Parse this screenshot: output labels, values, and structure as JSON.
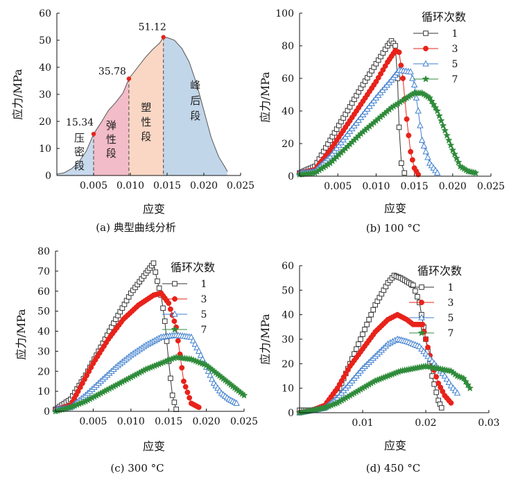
{
  "chart_data": [
    {
      "id": "a",
      "type": "area",
      "caption": "(a) 典型曲线分析",
      "xlabel": "应变",
      "ylabel": "应力/MPa",
      "xlim": [
        0,
        0.025
      ],
      "ylim": [
        0,
        60
      ],
      "xticks": [
        "0.005",
        "0.010",
        "0.015",
        "0.020",
        "0.025"
      ],
      "xtick_values": [
        0.005,
        0.01,
        0.015,
        0.02,
        0.025
      ],
      "yticks": [
        "0",
        "10",
        "20",
        "30",
        "40",
        "50",
        "60"
      ],
      "ytick_values": [
        0,
        10,
        20,
        30,
        40,
        50,
        60
      ],
      "curve": [
        [
          0.0,
          0.5
        ],
        [
          0.001,
          1.0
        ],
        [
          0.002,
          2.5
        ],
        [
          0.003,
          5.0
        ],
        [
          0.004,
          9.0
        ],
        [
          0.005,
          15.34
        ],
        [
          0.006,
          19.5
        ],
        [
          0.007,
          24.0
        ],
        [
          0.008,
          27.0
        ],
        [
          0.009,
          30.5
        ],
        [
          0.0098,
          35.78
        ],
        [
          0.011,
          40.0
        ],
        [
          0.012,
          43.5
        ],
        [
          0.013,
          46.5
        ],
        [
          0.014,
          49.0
        ],
        [
          0.0145,
          51.12
        ],
        [
          0.015,
          51.0
        ],
        [
          0.016,
          50.0
        ],
        [
          0.017,
          47.0
        ],
        [
          0.018,
          42.0
        ],
        [
          0.019,
          34.0
        ],
        [
          0.02,
          24.0
        ],
        [
          0.021,
          14.0
        ],
        [
          0.022,
          7.0
        ],
        [
          0.023,
          2.5
        ],
        [
          0.0232,
          1.5
        ]
      ],
      "regions": [
        {
          "label": "压密段",
          "from": 0.0,
          "to": 0.005,
          "color": "#c7d9ec"
        },
        {
          "label": "弹性段",
          "from": 0.005,
          "to": 0.0098,
          "color": "#f2bcc8"
        },
        {
          "label": "塑性段",
          "from": 0.0098,
          "to": 0.0145,
          "color": "#fad7c4"
        },
        {
          "label": "峰后段",
          "from": 0.0145,
          "to": 0.0232,
          "color": "#c2d6ea"
        }
      ],
      "points": [
        {
          "x": 0.005,
          "y": 15.34,
          "label": "15.34"
        },
        {
          "x": 0.0098,
          "y": 35.78,
          "label": "35.78"
        },
        {
          "x": 0.0145,
          "y": 51.12,
          "label": "51.12"
        }
      ],
      "grid": false
    },
    {
      "id": "b",
      "type": "scatter",
      "caption": "(b) 100 °C",
      "xlabel": "应变",
      "ylabel": "应力/MPa",
      "xlim": [
        0,
        0.025
      ],
      "ylim": [
        0,
        100
      ],
      "xticks": [
        "0.005",
        "0.010",
        "0.015",
        "0.020",
        "0.025"
      ],
      "xtick_values": [
        0.005,
        0.01,
        0.015,
        0.02,
        0.025
      ],
      "yticks": [
        "0",
        "20",
        "40",
        "60",
        "80",
        "100"
      ],
      "ytick_values": [
        0,
        20,
        40,
        60,
        80,
        100
      ],
      "legend_title": "循环次数",
      "legend_position": "top-right",
      "series": [
        {
          "name": "1",
          "color": "#333333",
          "marker": "square",
          "points": [
            [
              0.0,
              2
            ],
            [
              0.002,
              6
            ],
            [
              0.004,
              22
            ],
            [
              0.006,
              38
            ],
            [
              0.008,
              54
            ],
            [
              0.01,
              69
            ],
            [
              0.0115,
              80
            ],
            [
              0.012,
              83
            ],
            [
              0.0125,
              80
            ],
            [
              0.0128,
              60
            ],
            [
              0.013,
              30
            ],
            [
              0.0133,
              8
            ],
            [
              0.0137,
              2
            ]
          ]
        },
        {
          "name": "3",
          "color": "#e8221a",
          "marker": "circle",
          "points": [
            [
              0.0,
              2
            ],
            [
              0.002,
              4
            ],
            [
              0.004,
              16
            ],
            [
              0.006,
              30
            ],
            [
              0.008,
              44
            ],
            [
              0.01,
              58
            ],
            [
              0.0115,
              70
            ],
            [
              0.0125,
              77
            ],
            [
              0.013,
              76
            ],
            [
              0.0135,
              60
            ],
            [
              0.014,
              35
            ],
            [
              0.0145,
              15
            ],
            [
              0.015,
              5
            ],
            [
              0.0155,
              1
            ]
          ]
        },
        {
          "name": "5",
          "color": "#3f7fcf",
          "marker": "triangle",
          "points": [
            [
              0.0,
              2
            ],
            [
              0.002,
              3
            ],
            [
              0.004,
              12
            ],
            [
              0.006,
              24
            ],
            [
              0.008,
              36
            ],
            [
              0.01,
              48
            ],
            [
              0.012,
              59
            ],
            [
              0.013,
              65
            ],
            [
              0.0145,
              64
            ],
            [
              0.015,
              56
            ],
            [
              0.0155,
              40
            ],
            [
              0.016,
              22
            ],
            [
              0.017,
              8
            ],
            [
              0.018,
              2
            ]
          ]
        },
        {
          "name": "7",
          "color": "#2e8b3a",
          "marker": "star",
          "points": [
            [
              0.0,
              1
            ],
            [
              0.002,
              2
            ],
            [
              0.004,
              8
            ],
            [
              0.006,
              17
            ],
            [
              0.008,
              26
            ],
            [
              0.01,
              34
            ],
            [
              0.012,
              42
            ],
            [
              0.014,
              48
            ],
            [
              0.015,
              51
            ],
            [
              0.016,
              51
            ],
            [
              0.017,
              48
            ],
            [
              0.018,
              40
            ],
            [
              0.019,
              28
            ],
            [
              0.02,
              16
            ],
            [
              0.021,
              6
            ],
            [
              0.022,
              3
            ],
            [
              0.023,
              2
            ]
          ]
        }
      ],
      "grid": false
    },
    {
      "id": "c",
      "type": "scatter",
      "caption": "(c) 300 °C",
      "xlabel": "应变",
      "ylabel": "应力/MPa",
      "xlim": [
        0,
        0.025
      ],
      "ylim": [
        0,
        80
      ],
      "xticks": [
        "0.005",
        "0.010",
        "0.015",
        "0.020",
        "0.025"
      ],
      "xtick_values": [
        0.005,
        0.01,
        0.015,
        0.02,
        0.025
      ],
      "yticks": [
        "0",
        "10",
        "20",
        "30",
        "40",
        "50",
        "60",
        "70",
        "80"
      ],
      "ytick_values": [
        0,
        10,
        20,
        30,
        40,
        50,
        60,
        70,
        80
      ],
      "legend_title": "循环次数",
      "legend_position": "top-right",
      "series": [
        {
          "name": "1",
          "color": "#333333",
          "marker": "square",
          "points": [
            [
              0.0,
              1
            ],
            [
              0.002,
              6
            ],
            [
              0.004,
              18
            ],
            [
              0.006,
              32
            ],
            [
              0.008,
              46
            ],
            [
              0.01,
              59
            ],
            [
              0.012,
              69
            ],
            [
              0.013,
              74
            ],
            [
              0.0135,
              65
            ],
            [
              0.014,
              58
            ],
            [
              0.0145,
              45
            ],
            [
              0.015,
              25
            ],
            [
              0.0155,
              8
            ],
            [
              0.016,
              1
            ]
          ]
        },
        {
          "name": "3",
          "color": "#e8221a",
          "marker": "circle",
          "points": [
            [
              0.0,
              1
            ],
            [
              0.002,
              3
            ],
            [
              0.003,
              10
            ],
            [
              0.005,
              24
            ],
            [
              0.007,
              36
            ],
            [
              0.009,
              46
            ],
            [
              0.011,
              53
            ],
            [
              0.013,
              58
            ],
            [
              0.014,
              59
            ],
            [
              0.015,
              54
            ],
            [
              0.016,
              42
            ],
            [
              0.017,
              15
            ],
            [
              0.018,
              4
            ],
            [
              0.019,
              2
            ]
          ]
        },
        {
          "name": "5",
          "color": "#3f7fcf",
          "marker": "triangle",
          "points": [
            [
              0.0,
              1
            ],
            [
              0.002,
              2
            ],
            [
              0.004,
              8
            ],
            [
              0.006,
              15
            ],
            [
              0.008,
              22
            ],
            [
              0.01,
              28
            ],
            [
              0.012,
              33
            ],
            [
              0.014,
              37
            ],
            [
              0.016,
              38
            ],
            [
              0.018,
              37
            ],
            [
              0.019,
              30
            ],
            [
              0.02,
              22
            ],
            [
              0.021,
              14
            ],
            [
              0.022,
              9
            ],
            [
              0.023,
              6
            ],
            [
              0.024,
              4
            ]
          ]
        },
        {
          "name": "7",
          "color": "#2e8b3a",
          "marker": "star",
          "points": [
            [
              0.0,
              0
            ],
            [
              0.002,
              2
            ],
            [
              0.004,
              5
            ],
            [
              0.006,
              9
            ],
            [
              0.008,
              13
            ],
            [
              0.01,
              17
            ],
            [
              0.012,
              21
            ],
            [
              0.014,
              24
            ],
            [
              0.016,
              27
            ],
            [
              0.018,
              26
            ],
            [
              0.02,
              23
            ],
            [
              0.021,
              20
            ],
            [
              0.022,
              17
            ],
            [
              0.023,
              14
            ],
            [
              0.024,
              11
            ],
            [
              0.025,
              8
            ]
          ]
        }
      ],
      "grid": false
    },
    {
      "id": "d",
      "type": "scatter",
      "caption": "(d) 450 °C",
      "xlabel": "应变",
      "ylabel": "应力/MPa",
      "xlim": [
        0,
        0.03
      ],
      "ylim": [
        0,
        60
      ],
      "xticks": [
        "0.01",
        "0.02",
        "0.03"
      ],
      "xtick_values": [
        0.01,
        0.02,
        0.03
      ],
      "yticks": [
        "0",
        "10",
        "20",
        "30",
        "40",
        "50",
        "60"
      ],
      "ytick_values": [
        0,
        10,
        20,
        30,
        40,
        50,
        60
      ],
      "legend_title": "循环次数",
      "legend_position": "top-right",
      "series": [
        {
          "name": "1",
          "color": "#333333",
          "marker": "square",
          "points": [
            [
              0.0,
              1
            ],
            [
              0.002,
              1
            ],
            [
              0.004,
              2
            ],
            [
              0.006,
              8
            ],
            [
              0.008,
              20
            ],
            [
              0.01,
              32
            ],
            [
              0.012,
              44
            ],
            [
              0.014,
              53
            ],
            [
              0.015,
              56
            ],
            [
              0.016,
              55
            ],
            [
              0.018,
              52
            ],
            [
              0.019,
              45
            ],
            [
              0.02,
              30
            ],
            [
              0.021,
              15
            ],
            [
              0.022,
              5
            ],
            [
              0.0225,
              2
            ]
          ]
        },
        {
          "name": "3",
          "color": "#e8221a",
          "marker": "circle",
          "points": [
            [
              0.0,
              0
            ],
            [
              0.002,
              1
            ],
            [
              0.004,
              3
            ],
            [
              0.006,
              10
            ],
            [
              0.008,
              19
            ],
            [
              0.01,
              26
            ],
            [
              0.012,
              33
            ],
            [
              0.014,
              38
            ],
            [
              0.0155,
              40
            ],
            [
              0.017,
              38
            ],
            [
              0.018,
              36
            ],
            [
              0.0195,
              36
            ],
            [
              0.02,
              30
            ],
            [
              0.021,
              20
            ],
            [
              0.022,
              12
            ],
            [
              0.023,
              7
            ],
            [
              0.024,
              4
            ]
          ]
        },
        {
          "name": "5",
          "color": "#3f7fcf",
          "marker": "triangle",
          "points": [
            [
              0.0,
              0
            ],
            [
              0.002,
              1
            ],
            [
              0.004,
              2
            ],
            [
              0.006,
              6
            ],
            [
              0.008,
              12
            ],
            [
              0.01,
              18
            ],
            [
              0.012,
              23
            ],
            [
              0.014,
              28
            ],
            [
              0.0155,
              30
            ],
            [
              0.017,
              29
            ],
            [
              0.019,
              27
            ],
            [
              0.021,
              21
            ],
            [
              0.023,
              15
            ],
            [
              0.024,
              11
            ],
            [
              0.025,
              8
            ]
          ]
        },
        {
          "name": "7",
          "color": "#2e8b3a",
          "marker": "star",
          "points": [
            [
              0.0,
              0
            ],
            [
              0.002,
              1
            ],
            [
              0.004,
              2
            ],
            [
              0.006,
              4
            ],
            [
              0.008,
              7
            ],
            [
              0.01,
              10
            ],
            [
              0.012,
              13
            ],
            [
              0.014,
              15
            ],
            [
              0.016,
              17
            ],
            [
              0.018,
              18
            ],
            [
              0.02,
              19
            ],
            [
              0.022,
              18
            ],
            [
              0.024,
              17
            ],
            [
              0.025,
              15
            ],
            [
              0.026,
              14
            ],
            [
              0.027,
              10
            ]
          ]
        }
      ],
      "grid": false
    }
  ]
}
